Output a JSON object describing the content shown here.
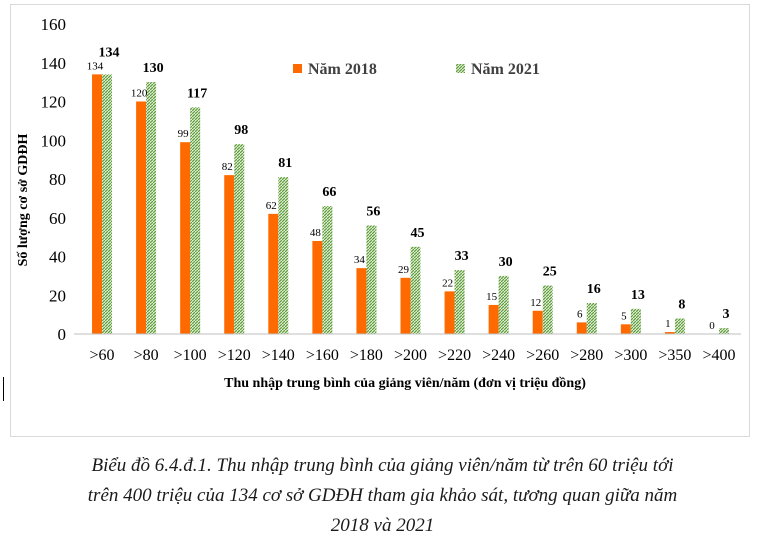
{
  "chart_data": {
    "type": "bar",
    "categories": [
      ">60",
      ">80",
      ">100",
      ">120",
      ">140",
      ">160",
      ">180",
      ">200",
      ">220",
      ">240",
      ">260",
      ">280",
      ">300",
      ">350",
      ">400"
    ],
    "series": [
      {
        "name": "Năm 2018",
        "color": "#ff6a00",
        "pattern": "solid",
        "values": [
          134,
          120,
          99,
          82,
          62,
          48,
          34,
          29,
          22,
          15,
          12,
          6,
          5,
          1,
          0
        ]
      },
      {
        "name": "Năm 2021",
        "color": "#6aa84f",
        "pattern": "hatched",
        "values": [
          134,
          130,
          117,
          98,
          81,
          66,
          56,
          45,
          33,
          30,
          25,
          16,
          13,
          8,
          3
        ]
      }
    ],
    "xlabel": "Thu nhập trung bình của giảng viên/năm (đơn vị triệu đồng)",
    "ylabel": "Số lượng cơ sở GDĐH",
    "ylim": [
      0,
      160
    ],
    "yticks": [
      0,
      20,
      40,
      60,
      80,
      100,
      120,
      140,
      160
    ],
    "legend_position": "top-right",
    "grid": false
  },
  "caption": {
    "lines": [
      "Biểu đồ 6.4.đ.1. Thu nhập trung bình của giảng viên/năm từ trên 60 triệu tới",
      "trên 400 triệu của 134 cơ sở GDĐH tham gia khảo sát, tương quan giữa năm",
      "2018 và 2021"
    ]
  }
}
